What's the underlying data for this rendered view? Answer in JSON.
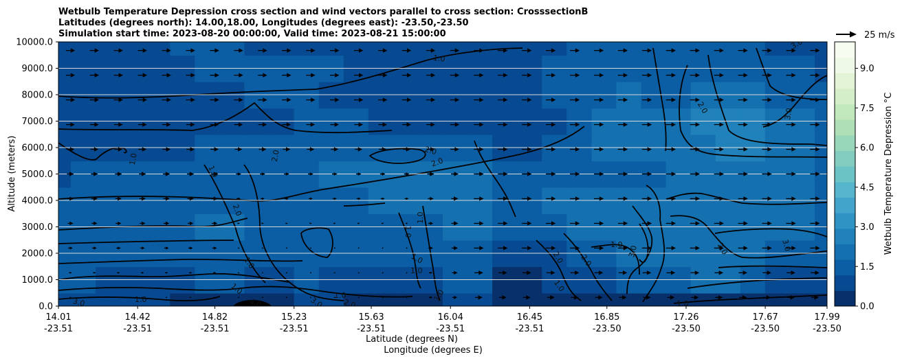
{
  "chart_data": {
    "type": "heatmap",
    "title_lines": [
      "Wetbulb Temperature Depression cross section and wind vectors parallel to cross section: CrosssectionB",
      "Latitudes (degrees north): 14.00,18.00, Longitudes (degrees east): -23.50,-23.50",
      "Simulation start time: 2023-08-20 00:00:00, Valid time: 2023-08-21 15:00:00"
    ],
    "ylabel": "Altitude (meters)",
    "xlabel_lines": [
      "Latitude (degrees N)",
      "Longitude (degrees E)"
    ],
    "y_ticks": [
      "0.0",
      "1000.0",
      "2000.0",
      "3000.0",
      "4000.0",
      "5000.0",
      "6000.0",
      "7000.0",
      "8000.0",
      "9000.0",
      "10000.0"
    ],
    "ylim": [
      0,
      10000
    ],
    "x_ticks": [
      {
        "lat": "14.01",
        "lon": "-23.51"
      },
      {
        "lat": "14.42",
        "lon": "-23.51"
      },
      {
        "lat": "14.82",
        "lon": "-23.51"
      },
      {
        "lat": "15.23",
        "lon": "-23.51"
      },
      {
        "lat": "15.63",
        "lon": "-23.51"
      },
      {
        "lat": "16.04",
        "lon": "-23.51"
      },
      {
        "lat": "16.45",
        "lon": "-23.51"
      },
      {
        "lat": "16.85",
        "lon": "-23.50"
      },
      {
        "lat": "17.26",
        "lon": "-23.50"
      },
      {
        "lat": "17.67",
        "lon": "-23.50"
      },
      {
        "lat": "17.99",
        "lon": "-23.50"
      }
    ],
    "grid": "horizontal",
    "colorbar": {
      "label": "Wetbulb Temperature Depression °C",
      "ticks": [
        "0.0",
        "1.5",
        "3.0",
        "4.5",
        "6.0",
        "7.5",
        "9.0"
      ],
      "range": [
        0,
        10
      ],
      "colors": [
        "#08306b",
        "#084a91",
        "#0b5ea3",
        "#1570b0",
        "#2182bb",
        "#2f93c4",
        "#43a4cb",
        "#57b5cb",
        "#6cc3c5",
        "#83cdc0",
        "#99d7ba",
        "#aedfb6",
        "#c1e7bd",
        "#d3eec9",
        "#e3f4d6",
        "#eff9e7",
        "#f7fcf0"
      ]
    },
    "quiver_key": {
      "label": "25 m/s"
    },
    "contour_labels": [
      "1.0",
      "1.0",
      "1.0",
      "1.0",
      "1.0",
      "1.0",
      "1.0",
      "1.0",
      "1.0",
      "1.0",
      "1.0",
      "1.0",
      "1.0",
      "1.0",
      "1.0",
      "2.0",
      "2.0",
      "2.0",
      "2.0",
      "2.0",
      "2.0",
      "2.0",
      "2.0",
      "2.0",
      "3.0",
      "3.0",
      "3.0",
      "3.0",
      "3.0",
      "3.0",
      "4.0"
    ],
    "field_rows_m": [
      [
        0.9,
        0.9,
        0.8,
        0.7,
        0.6,
        0.5,
        0.4,
        0.3,
        0.3,
        0.4,
        0.6,
        0.6,
        0.5,
        0.4,
        0.3,
        0.3,
        0.7,
        0.7,
        0.4,
        0.4,
        0.4,
        0.4,
        0.3,
        0.3,
        0.3,
        0.3,
        0.3,
        0.3,
        0.3,
        0.3,
        0.5,
        0.5
      ],
      [
        1.2,
        1.2,
        1.1,
        1.0,
        1.0,
        1.1,
        1.3,
        1.3,
        1.1,
        1.1,
        1.2,
        1.1,
        1.0,
        0.8,
        0.8,
        0.9,
        1.3,
        1.2,
        0.5,
        0.5,
        0.6,
        0.8,
        0.9,
        1.3,
        1.4,
        1.6,
        1.8,
        1.8,
        1.5,
        1.1,
        0.9,
        0.8
      ],
      [
        1.3,
        1.4,
        1.4,
        1.4,
        1.5,
        1.6,
        1.7,
        1.7,
        1.6,
        1.5,
        1.6,
        1.4,
        1.3,
        1.2,
        1.2,
        1.2,
        1.7,
        1.6,
        0.9,
        0.9,
        1.0,
        1.4,
        1.6,
        1.8,
        1.8,
        1.9,
        2.0,
        2.0,
        1.8,
        1.6,
        1.4,
        1.3
      ],
      [
        1.5,
        1.6,
        1.6,
        1.6,
        1.7,
        1.7,
        1.8,
        1.8,
        1.7,
        1.6,
        1.6,
        1.5,
        1.5,
        1.5,
        1.6,
        1.6,
        1.9,
        1.8,
        1.4,
        1.4,
        1.6,
        1.8,
        2.0,
        2.0,
        1.9,
        1.9,
        2.0,
        2.1,
        2.0,
        1.9,
        1.8,
        1.7
      ],
      [
        1.4,
        1.5,
        1.6,
        1.6,
        1.6,
        1.6,
        1.7,
        1.7,
        1.6,
        1.5,
        1.5,
        1.6,
        1.7,
        1.8,
        1.9,
        1.9,
        2.1,
        2.0,
        1.6,
        1.6,
        1.8,
        2.0,
        2.1,
        2.0,
        1.9,
        1.9,
        2.1,
        2.2,
        2.1,
        2.0,
        1.8,
        1.6
      ],
      [
        1.1,
        1.2,
        1.3,
        1.3,
        1.4,
        1.4,
        1.5,
        1.5,
        1.5,
        1.6,
        1.7,
        1.9,
        2.0,
        2.0,
        1.9,
        1.8,
        2.0,
        1.8,
        1.4,
        1.3,
        1.4,
        1.6,
        1.7,
        1.7,
        1.7,
        1.8,
        2.0,
        2.1,
        2.1,
        2.0,
        1.8,
        1.5
      ],
      [
        0.8,
        0.9,
        1.0,
        1.0,
        1.0,
        1.1,
        1.2,
        1.3,
        1.3,
        1.4,
        1.5,
        1.6,
        1.6,
        1.5,
        1.4,
        1.3,
        1.5,
        1.3,
        1.0,
        1.0,
        1.2,
        1.5,
        1.8,
        1.9,
        1.9,
        2.0,
        2.3,
        2.5,
        2.4,
        2.3,
        2.0,
        1.6
      ],
      [
        0.6,
        0.7,
        0.8,
        0.9,
        0.9,
        1.0,
        1.1,
        1.1,
        1.1,
        1.1,
        1.2,
        1.3,
        1.2,
        1.1,
        1.0,
        1.0,
        1.1,
        1.0,
        0.7,
        0.8,
        1.1,
        1.4,
        1.8,
        2.0,
        2.1,
        2.2,
        2.5,
        2.6,
        2.5,
        2.3,
        2.0,
        1.6
      ],
      [
        0.7,
        0.8,
        0.8,
        0.8,
        0.8,
        0.9,
        1.0,
        1.1,
        1.2,
        1.2,
        1.2,
        1.1,
        1.0,
        0.9,
        0.9,
        0.9,
        1.0,
        0.9,
        0.8,
        0.9,
        1.2,
        1.5,
        1.7,
        1.8,
        1.7,
        1.7,
        1.9,
        2.0,
        1.9,
        1.7,
        1.5,
        1.3
      ],
      [
        0.8,
        0.9,
        1.0,
        1.0,
        1.0,
        1.1,
        1.2,
        1.3,
        1.3,
        1.3,
        1.3,
        1.2,
        1.1,
        1.0,
        1.0,
        0.9,
        1.0,
        0.9,
        0.8,
        0.9,
        1.2,
        1.4,
        1.5,
        1.5,
        1.4,
        1.4,
        1.6,
        1.7,
        1.6,
        1.5,
        1.3,
        1.1
      ],
      [
        0.7,
        0.8,
        0.9,
        1.0,
        1.1,
        1.2,
        1.2,
        1.2,
        1.1,
        1.1,
        1.1,
        1.0,
        0.9,
        0.9,
        0.9,
        0.8,
        0.9,
        0.8,
        0.7,
        0.8,
        1.0,
        1.2,
        1.3,
        1.2,
        1.2,
        1.2,
        1.3,
        1.3,
        1.2,
        1.1,
        0.9,
        0.8
      ]
    ],
    "wind_vectors_ms": [
      [
        1.5,
        1.5,
        1.5,
        1.5,
        1.5,
        1.5,
        1.5,
        0.5,
        0.5,
        0.5,
        0.5,
        0.5,
        0.5,
        0.5,
        0.5,
        3.0,
        4.5,
        6.5,
        6.5,
        6.5,
        6.5,
        6.5,
        6.5,
        6.5,
        6.5,
        6.5,
        6.5,
        6.5,
        6.5,
        6.5,
        6.5,
        6.5
      ],
      [
        2.5,
        2.5,
        2.5,
        2.5,
        2.5,
        2.5,
        2.5,
        0.5,
        0.5,
        0.5,
        0.5,
        0.5,
        0.5,
        0.5,
        0.5,
        3.0,
        5.0,
        7.5,
        7.5,
        7.5,
        7.5,
        7.5,
        7.5,
        7.5,
        7.5,
        7.5,
        7.5,
        7.5,
        7.5,
        7.5,
        7.5,
        7.5
      ],
      [
        4.0,
        4.0,
        4.0,
        4.0,
        4.0,
        4.0,
        4.0,
        1.0,
        1.0,
        1.0,
        1.0,
        1.0,
        1.0,
        1.0,
        1.0,
        4.0,
        5.5,
        8.5,
        8.5,
        8.5,
        8.5,
        8.5,
        8.5,
        8.5,
        8.5,
        8.5,
        8.5,
        8.5,
        8.5,
        8.5,
        8.5,
        8.5
      ],
      [
        5.0,
        5.0,
        5.0,
        5.0,
        5.0,
        5.0,
        5.0,
        2.0,
        2.0,
        2.0,
        2.0,
        2.0,
        2.0,
        2.0,
        2.0,
        4.5,
        6.0,
        8.5,
        8.5,
        8.5,
        8.5,
        8.5,
        8.5,
        8.5,
        8.5,
        8.5,
        8.5,
        8.5,
        8.5,
        8.5,
        8.5,
        8.5
      ],
      [
        5.5,
        5.5,
        5.5,
        5.5,
        5.5,
        5.5,
        5.5,
        3.5,
        3.5,
        3.5,
        3.5,
        3.5,
        3.5,
        3.5,
        3.5,
        5.0,
        6.0,
        8.5,
        8.5,
        8.5,
        8.5,
        8.5,
        8.5,
        8.5,
        8.5,
        8.5,
        8.5,
        8.5,
        8.5,
        8.5,
        8.5,
        8.5
      ],
      [
        6.0,
        6.0,
        6.0,
        6.0,
        6.0,
        6.0,
        6.0,
        4.5,
        4.5,
        4.5,
        4.5,
        4.5,
        4.5,
        4.5,
        4.5,
        6.0,
        6.5,
        8.5,
        8.5,
        8.5,
        8.5,
        8.5,
        8.5,
        8.5,
        8.5,
        8.5,
        8.5,
        8.5,
        8.5,
        8.5,
        8.5,
        8.5
      ],
      [
        7.0,
        7.0,
        7.0,
        7.0,
        7.0,
        7.0,
        7.0,
        6.5,
        6.5,
        6.5,
        6.5,
        6.5,
        6.5,
        6.5,
        6.5,
        7.0,
        7.5,
        8.5,
        8.5,
        8.5,
        8.5,
        8.5,
        8.5,
        8.5,
        8.5,
        8.5,
        8.5,
        8.5,
        8.5,
        8.5,
        8.5,
        8.5
      ],
      [
        7.5,
        7.5,
        7.5,
        7.5,
        7.5,
        7.5,
        7.5,
        7.5,
        7.5,
        7.5,
        7.5,
        7.5,
        7.5,
        7.5,
        7.5,
        7.5,
        8.0,
        8.5,
        8.5,
        8.5,
        8.5,
        8.5,
        8.5,
        8.5,
        8.5,
        8.5,
        8.5,
        8.5,
        8.5,
        8.5,
        8.5,
        8.5
      ],
      [
        8.0,
        8.0,
        8.0,
        8.0,
        8.0,
        8.0,
        8.0,
        8.0,
        8.0,
        8.0,
        8.0,
        8.0,
        8.0,
        8.0,
        8.0,
        8.0,
        8.0,
        8.5,
        8.5,
        8.5,
        8.5,
        8.5,
        8.5,
        8.5,
        8.5,
        8.5,
        8.5,
        8.5,
        8.5,
        8.5,
        8.5,
        8.5
      ],
      [
        8.0,
        8.0,
        8.0,
        8.0,
        8.0,
        8.0,
        8.0,
        8.0,
        8.0,
        8.0,
        8.0,
        8.0,
        8.0,
        8.0,
        8.0,
        8.0,
        8.0,
        8.5,
        8.5,
        8.5,
        8.5,
        8.5,
        8.5,
        8.5,
        8.5,
        8.5,
        8.5,
        8.5,
        8.5,
        8.5,
        8.5,
        8.5
      ],
      [
        8.0,
        8.0,
        8.0,
        8.0,
        8.0,
        8.0,
        8.0,
        8.0,
        8.0,
        8.0,
        8.0,
        8.0,
        8.0,
        8.0,
        8.0,
        8.0,
        8.0,
        8.5,
        8.5,
        8.5,
        8.5,
        8.5,
        8.5,
        8.5,
        8.5,
        8.5,
        8.5,
        8.5,
        8.5,
        8.5,
        8.5,
        8.5
      ]
    ]
  }
}
